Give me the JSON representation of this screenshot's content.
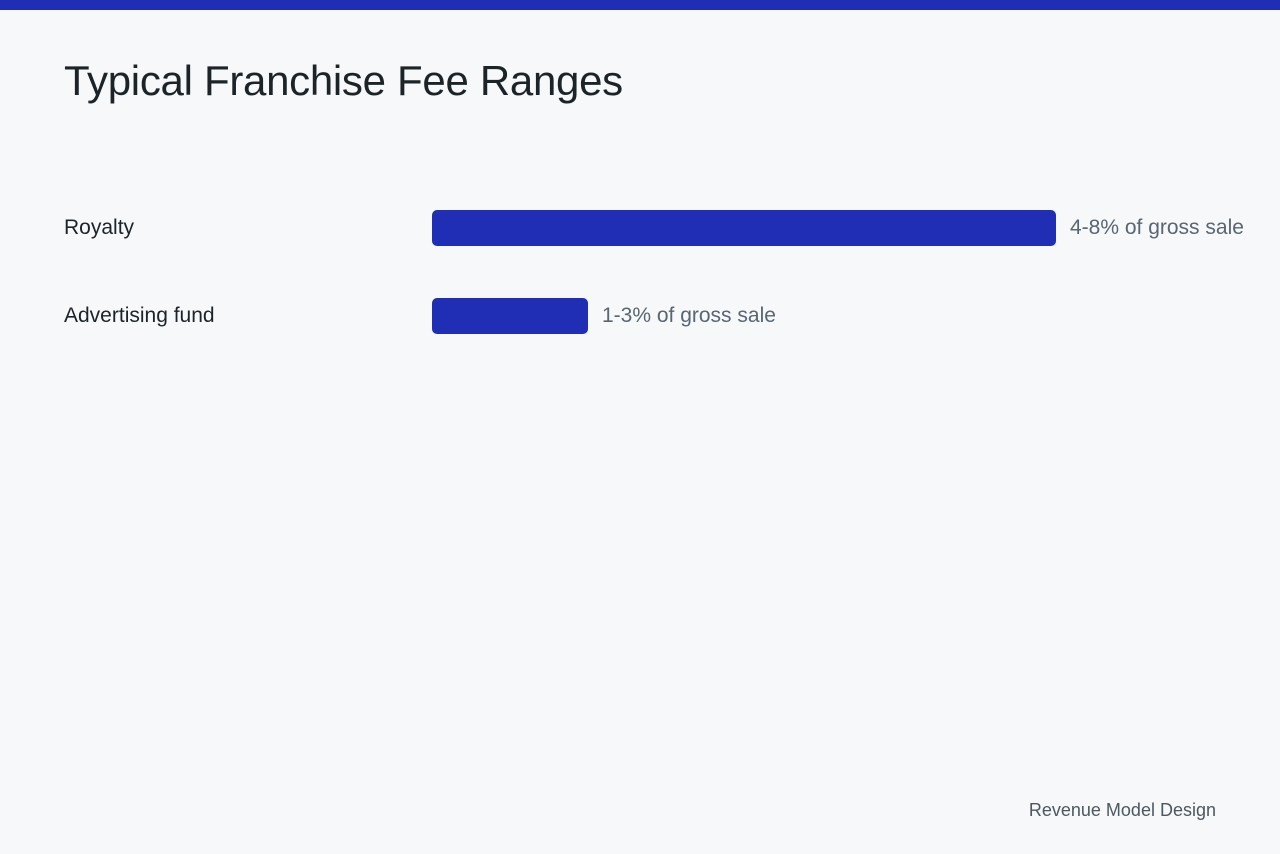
{
  "title": "Typical Franchise Fee Ranges",
  "footer": "Revenue Model Design",
  "colors": {
    "accent": "#1f2eb5",
    "background": "#f6f8fa"
  },
  "chart_data": {
    "type": "bar",
    "orientation": "horizontal",
    "title": "Typical Franchise Fee Ranges",
    "categories": [
      "Royalty",
      "Advertising fund"
    ],
    "values": [
      8,
      2
    ],
    "value_labels": [
      "4-8% of gross sale",
      "1-3% of gross sale"
    ],
    "xlabel": "",
    "ylabel": "",
    "xlim": [
      0,
      8
    ],
    "grid": false,
    "legend": "none"
  }
}
